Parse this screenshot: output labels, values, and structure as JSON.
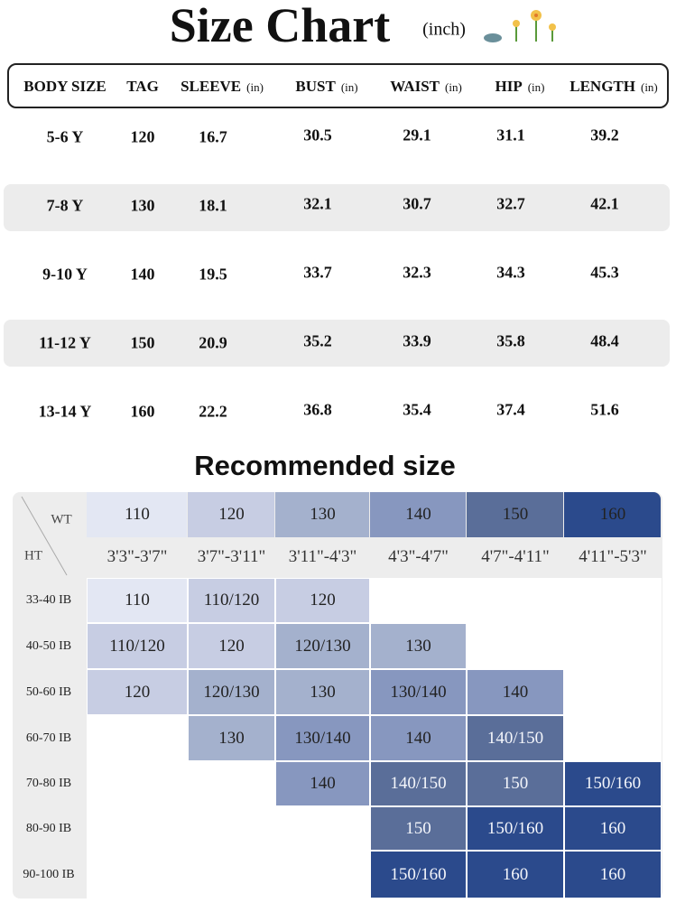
{
  "title": "Size Chart",
  "title_unit": "(inch)",
  "size_table": {
    "headers": [
      {
        "label": "BODY SIZE"
      },
      {
        "label": "TAG"
      },
      {
        "label": "SLEEVE",
        "unit": "(in)"
      },
      {
        "label": "BUST",
        "unit": "(in)"
      },
      {
        "label": "WAIST",
        "unit": "(in)"
      },
      {
        "label": "HIP",
        "unit": "(in)"
      },
      {
        "label": "LENGTH",
        "unit": "(in)"
      }
    ],
    "rows": [
      [
        "5-6 Y",
        120,
        16.7,
        30.5,
        29.1,
        31.1,
        39.2
      ],
      [
        "7-8 Y",
        130,
        18.1,
        32.1,
        30.7,
        32.7,
        42.1
      ],
      [
        "9-10 Y",
        140,
        19.5,
        33.7,
        32.3,
        34.3,
        45.3
      ],
      [
        "11-12 Y",
        150,
        20.9,
        35.2,
        33.9,
        35.8,
        48.4
      ],
      [
        "13-14 Y",
        160,
        22.2,
        36.8,
        35.4,
        37.4,
        51.6
      ]
    ]
  },
  "recommended": {
    "title": "Recommended size",
    "wt_label": "WT",
    "ht_label": "HT",
    "tags": [
      110,
      120,
      130,
      140,
      150,
      160
    ],
    "tag_colors": [
      "#e3e7f3",
      "#c7cde3",
      "#a4b1cd",
      "#8797bf",
      "#5a6e99",
      "#2b4a8c"
    ],
    "heights": [
      "3'3\"-3'7\"",
      "3'7\"-3'11\"",
      "3'11\"-4'3\"",
      "4'3\"-4'7\"",
      "4'7\"-4'11\"",
      "4'11\"-5'3\""
    ],
    "rows": [
      {
        "label": "33-40 IB",
        "cells": [
          "110",
          "110/120",
          "120",
          null,
          null,
          null
        ]
      },
      {
        "label": "40-50 IB",
        "cells": [
          "110/120",
          "120",
          "120/130",
          "130",
          null,
          null
        ]
      },
      {
        "label": "50-60 IB",
        "cells": [
          "120",
          "120/130",
          "130",
          "130/140",
          "140",
          null
        ]
      },
      {
        "label": "60-70 IB",
        "cells": [
          null,
          "130",
          "130/140",
          "140",
          "140/150",
          null
        ]
      },
      {
        "label": "70-80 IB",
        "cells": [
          null,
          null,
          "140",
          "140/150",
          "150",
          "150/160"
        ]
      },
      {
        "label": "80-90 IB",
        "cells": [
          null,
          null,
          null,
          "150",
          "150/160",
          "160"
        ]
      },
      {
        "label": "90-100 IB",
        "cells": [
          null,
          null,
          null,
          "150/160",
          "160",
          "160"
        ]
      }
    ]
  }
}
